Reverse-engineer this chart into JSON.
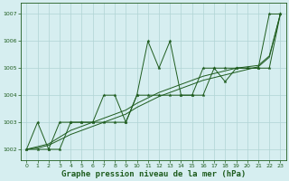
{
  "background_color": "#d6eef0",
  "grid_color": "#b0d4d4",
  "line_color": "#1e5c1e",
  "xlabel": "Graphe pression niveau de la mer (hPa)",
  "xlabel_fontsize": 6.5,
  "ylim": [
    1001.6,
    1007.4
  ],
  "xlim": [
    -0.5,
    23.5
  ],
  "yticks": [
    1002,
    1003,
    1004,
    1005,
    1006,
    1007
  ],
  "xticks": [
    0,
    1,
    2,
    3,
    4,
    5,
    6,
    7,
    8,
    9,
    10,
    11,
    12,
    13,
    14,
    15,
    16,
    17,
    18,
    19,
    20,
    21,
    22,
    23
  ],
  "series_jagged1": [
    1002.0,
    1003.0,
    1002.0,
    1002.0,
    1003.0,
    1003.0,
    1003.0,
    1004.0,
    1004.0,
    1003.0,
    1004.0,
    1006.0,
    1005.0,
    1006.0,
    1004.0,
    1004.0,
    1004.0,
    1005.0,
    1004.5,
    1005.0,
    1005.0,
    1005.0,
    1007.0,
    1007.0
  ],
  "series_jagged2": [
    1002.0,
    1002.0,
    1002.0,
    1003.0,
    1003.0,
    1003.0,
    1003.0,
    1003.0,
    1003.0,
    1003.0,
    1004.0,
    1004.0,
    1004.0,
    1004.0,
    1004.0,
    1004.0,
    1005.0,
    1005.0,
    1005.0,
    1005.0,
    1005.0,
    1005.0,
    1005.0,
    1007.0
  ],
  "series_smooth1": [
    1002.0,
    1002.05,
    1002.15,
    1002.35,
    1002.55,
    1002.7,
    1002.85,
    1003.0,
    1003.15,
    1003.3,
    1003.55,
    1003.75,
    1003.95,
    1004.1,
    1004.25,
    1004.4,
    1004.55,
    1004.65,
    1004.75,
    1004.85,
    1004.95,
    1005.05,
    1005.4,
    1007.0
  ],
  "series_smooth2": [
    1002.0,
    1002.1,
    1002.2,
    1002.45,
    1002.7,
    1002.85,
    1003.0,
    1003.15,
    1003.3,
    1003.45,
    1003.7,
    1003.9,
    1004.1,
    1004.25,
    1004.4,
    1004.55,
    1004.7,
    1004.8,
    1004.9,
    1005.0,
    1005.05,
    1005.1,
    1005.45,
    1007.0
  ]
}
